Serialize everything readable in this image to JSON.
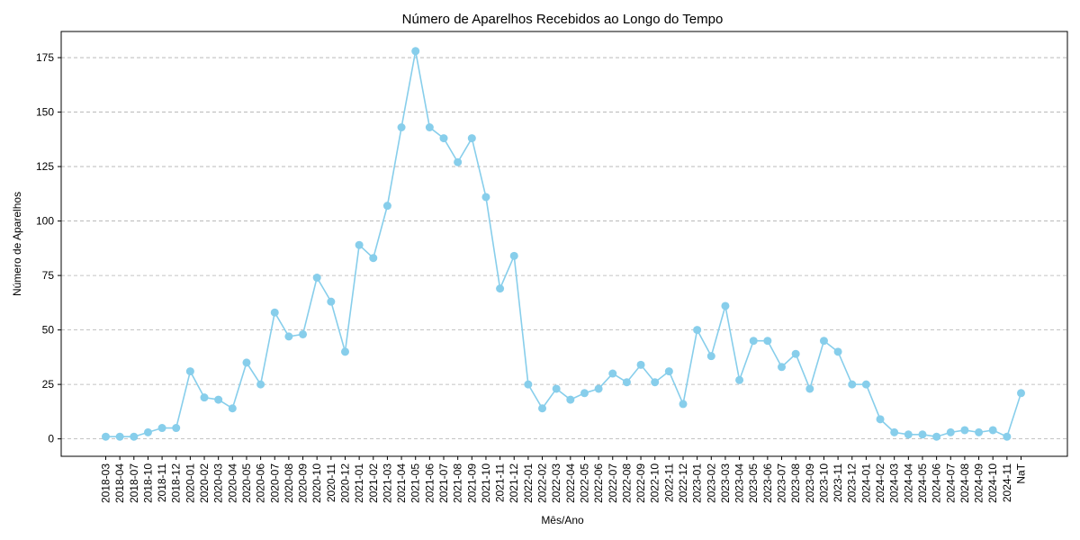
{
  "chart_data": {
    "type": "line",
    "title": "Número de Aparelhos Recebidos ao Longo do Tempo",
    "xlabel": "Mês/Ano",
    "ylabel": "Número de Aparelhos",
    "categories": [
      "2018-03",
      "2018-04",
      "2018-07",
      "2018-10",
      "2018-11",
      "2018-12",
      "2020-01",
      "2020-02",
      "2020-03",
      "2020-04",
      "2020-05",
      "2020-06",
      "2020-07",
      "2020-08",
      "2020-09",
      "2020-10",
      "2020-11",
      "2020-12",
      "2021-01",
      "2021-02",
      "2021-03",
      "2021-04",
      "2021-05",
      "2021-06",
      "2021-07",
      "2021-08",
      "2021-09",
      "2021-10",
      "2021-11",
      "2021-12",
      "2022-01",
      "2022-02",
      "2022-03",
      "2022-04",
      "2022-05",
      "2022-06",
      "2022-07",
      "2022-08",
      "2022-09",
      "2022-10",
      "2022-11",
      "2022-12",
      "2023-01",
      "2023-02",
      "2023-03",
      "2023-04",
      "2023-05",
      "2023-06",
      "2023-07",
      "2023-08",
      "2023-09",
      "2023-10",
      "2023-11",
      "2023-12",
      "2024-01",
      "2024-02",
      "2024-03",
      "2024-04",
      "2024-05",
      "2024-06",
      "2024-07",
      "2024-08",
      "2024-09",
      "2024-10",
      "2024-11",
      "NaT"
    ],
    "values": [
      1,
      1,
      1,
      3,
      5,
      5,
      31,
      19,
      18,
      14,
      35,
      25,
      58,
      47,
      48,
      74,
      63,
      40,
      89,
      83,
      107,
      143,
      178,
      143,
      138,
      127,
      138,
      111,
      69,
      84,
      25,
      14,
      23,
      18,
      21,
      23,
      30,
      26,
      34,
      26,
      31,
      16,
      50,
      38,
      61,
      27,
      45,
      45,
      33,
      39,
      23,
      45,
      40,
      25,
      25,
      9,
      3,
      2,
      2,
      1,
      3,
      4,
      3,
      4,
      1,
      21
    ],
    "ylim": [
      -8,
      187
    ],
    "yticks": [
      0,
      25,
      50,
      75,
      100,
      125,
      150,
      175
    ],
    "grid": "y-dashed",
    "color": "#87ceeb"
  }
}
